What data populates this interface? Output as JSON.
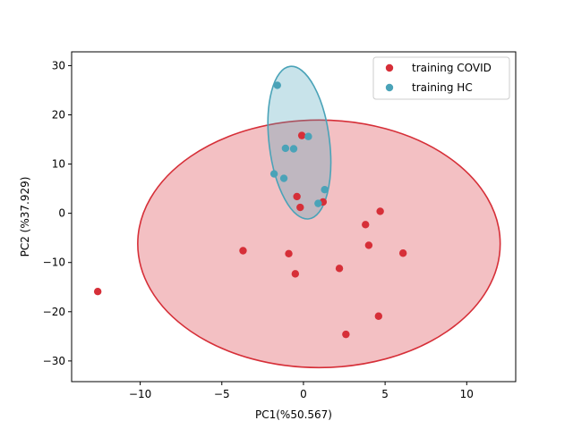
{
  "chart_data": {
    "type": "scatter",
    "title": "",
    "xlabel": "PC1(%50.567)",
    "ylabel": "PC2 (%37.929)",
    "xlim": [
      -14.2,
      13.0
    ],
    "ylim": [
      -34.2,
      32.8
    ],
    "xticks": [
      -10,
      -5,
      0,
      5,
      10
    ],
    "yticks": [
      -30,
      -20,
      -10,
      0,
      10,
      20,
      30
    ],
    "xtick_labels": [
      "−10",
      "−5",
      "0",
      "5",
      "10"
    ],
    "ytick_labels": [
      "−30",
      "−20",
      "−10",
      "0",
      "10",
      "20",
      "30"
    ],
    "grid": false,
    "legend_position": "top-right",
    "series": [
      {
        "name": "training COVID",
        "color": "#d62f38",
        "points": [
          [
            -12.6,
            -15.9
          ],
          [
            -3.7,
            -7.6
          ],
          [
            -0.9,
            -8.2
          ],
          [
            -0.5,
            -12.3
          ],
          [
            -0.4,
            3.4
          ],
          [
            -0.2,
            1.2
          ],
          [
            -0.1,
            15.8
          ],
          [
            1.2,
            2.3
          ],
          [
            2.2,
            -11.2
          ],
          [
            2.6,
            -24.6
          ],
          [
            3.8,
            -2.3
          ],
          [
            4.0,
            -6.5
          ],
          [
            4.6,
            -20.9
          ],
          [
            4.7,
            0.4
          ],
          [
            6.1,
            -8.1
          ]
        ],
        "ellipse": {
          "cx": 0.95,
          "cy": -6.2,
          "rx": 11.1,
          "ry": 25.15,
          "angle_deg": 0,
          "fill_alpha": 0.3
        }
      },
      {
        "name": "training HC",
        "color": "#4aa3b8",
        "points": [
          [
            -1.6,
            26.0
          ],
          [
            -1.1,
            13.2
          ],
          [
            -0.6,
            13.1
          ],
          [
            0.3,
            15.6
          ],
          [
            -1.8,
            8.0
          ],
          [
            -1.2,
            7.1
          ],
          [
            1.3,
            4.8
          ],
          [
            0.9,
            2.0
          ]
        ],
        "ellipse": {
          "cx": -0.25,
          "cy": 14.35,
          "rx": 1.85,
          "ry": 15.6,
          "angle_deg": -7,
          "fill_alpha": 0.3
        }
      }
    ]
  }
}
